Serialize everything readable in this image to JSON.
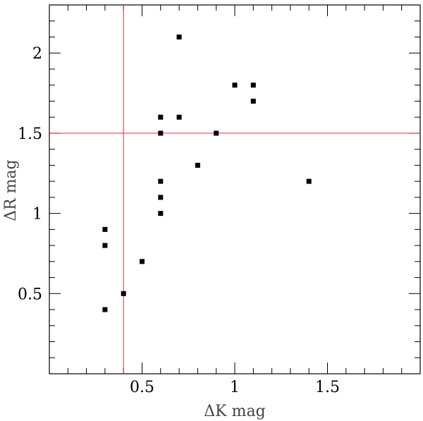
{
  "chart_data": {
    "type": "scatter",
    "xlabel": "ΔK mag",
    "ylabel": "ΔR mag",
    "xlim": [
      0.0,
      2.0
    ],
    "ylim": [
      0.0,
      2.3
    ],
    "xticks_major": [
      0.5,
      1,
      1.5
    ],
    "xtick_labels": [
      "0.5",
      "1",
      "1.5"
    ],
    "yticks_major": [
      0.5,
      1,
      1.5,
      2
    ],
    "ytick_labels": [
      "0.5",
      "1",
      "1.5",
      "2"
    ],
    "grid": false,
    "reference_lines": {
      "vertical_x": 0.4,
      "horizontal_y": 1.5,
      "color": "#e03030"
    },
    "marker_color": "#000000",
    "points": [
      {
        "x": 0.3,
        "y": 0.9
      },
      {
        "x": 0.3,
        "y": 0.8
      },
      {
        "x": 0.3,
        "y": 0.4
      },
      {
        "x": 0.4,
        "y": 0.5
      },
      {
        "x": 0.5,
        "y": 0.7
      },
      {
        "x": 0.6,
        "y": 1.6
      },
      {
        "x": 0.6,
        "y": 1.5
      },
      {
        "x": 0.6,
        "y": 1.2
      },
      {
        "x": 0.6,
        "y": 1.1
      },
      {
        "x": 0.6,
        "y": 1.0
      },
      {
        "x": 0.7,
        "y": 2.1
      },
      {
        "x": 0.7,
        "y": 1.6
      },
      {
        "x": 0.8,
        "y": 1.3
      },
      {
        "x": 0.9,
        "y": 1.5
      },
      {
        "x": 1.0,
        "y": 1.8
      },
      {
        "x": 1.1,
        "y": 1.8
      },
      {
        "x": 1.1,
        "y": 1.7
      },
      {
        "x": 1.4,
        "y": 1.2
      }
    ]
  }
}
